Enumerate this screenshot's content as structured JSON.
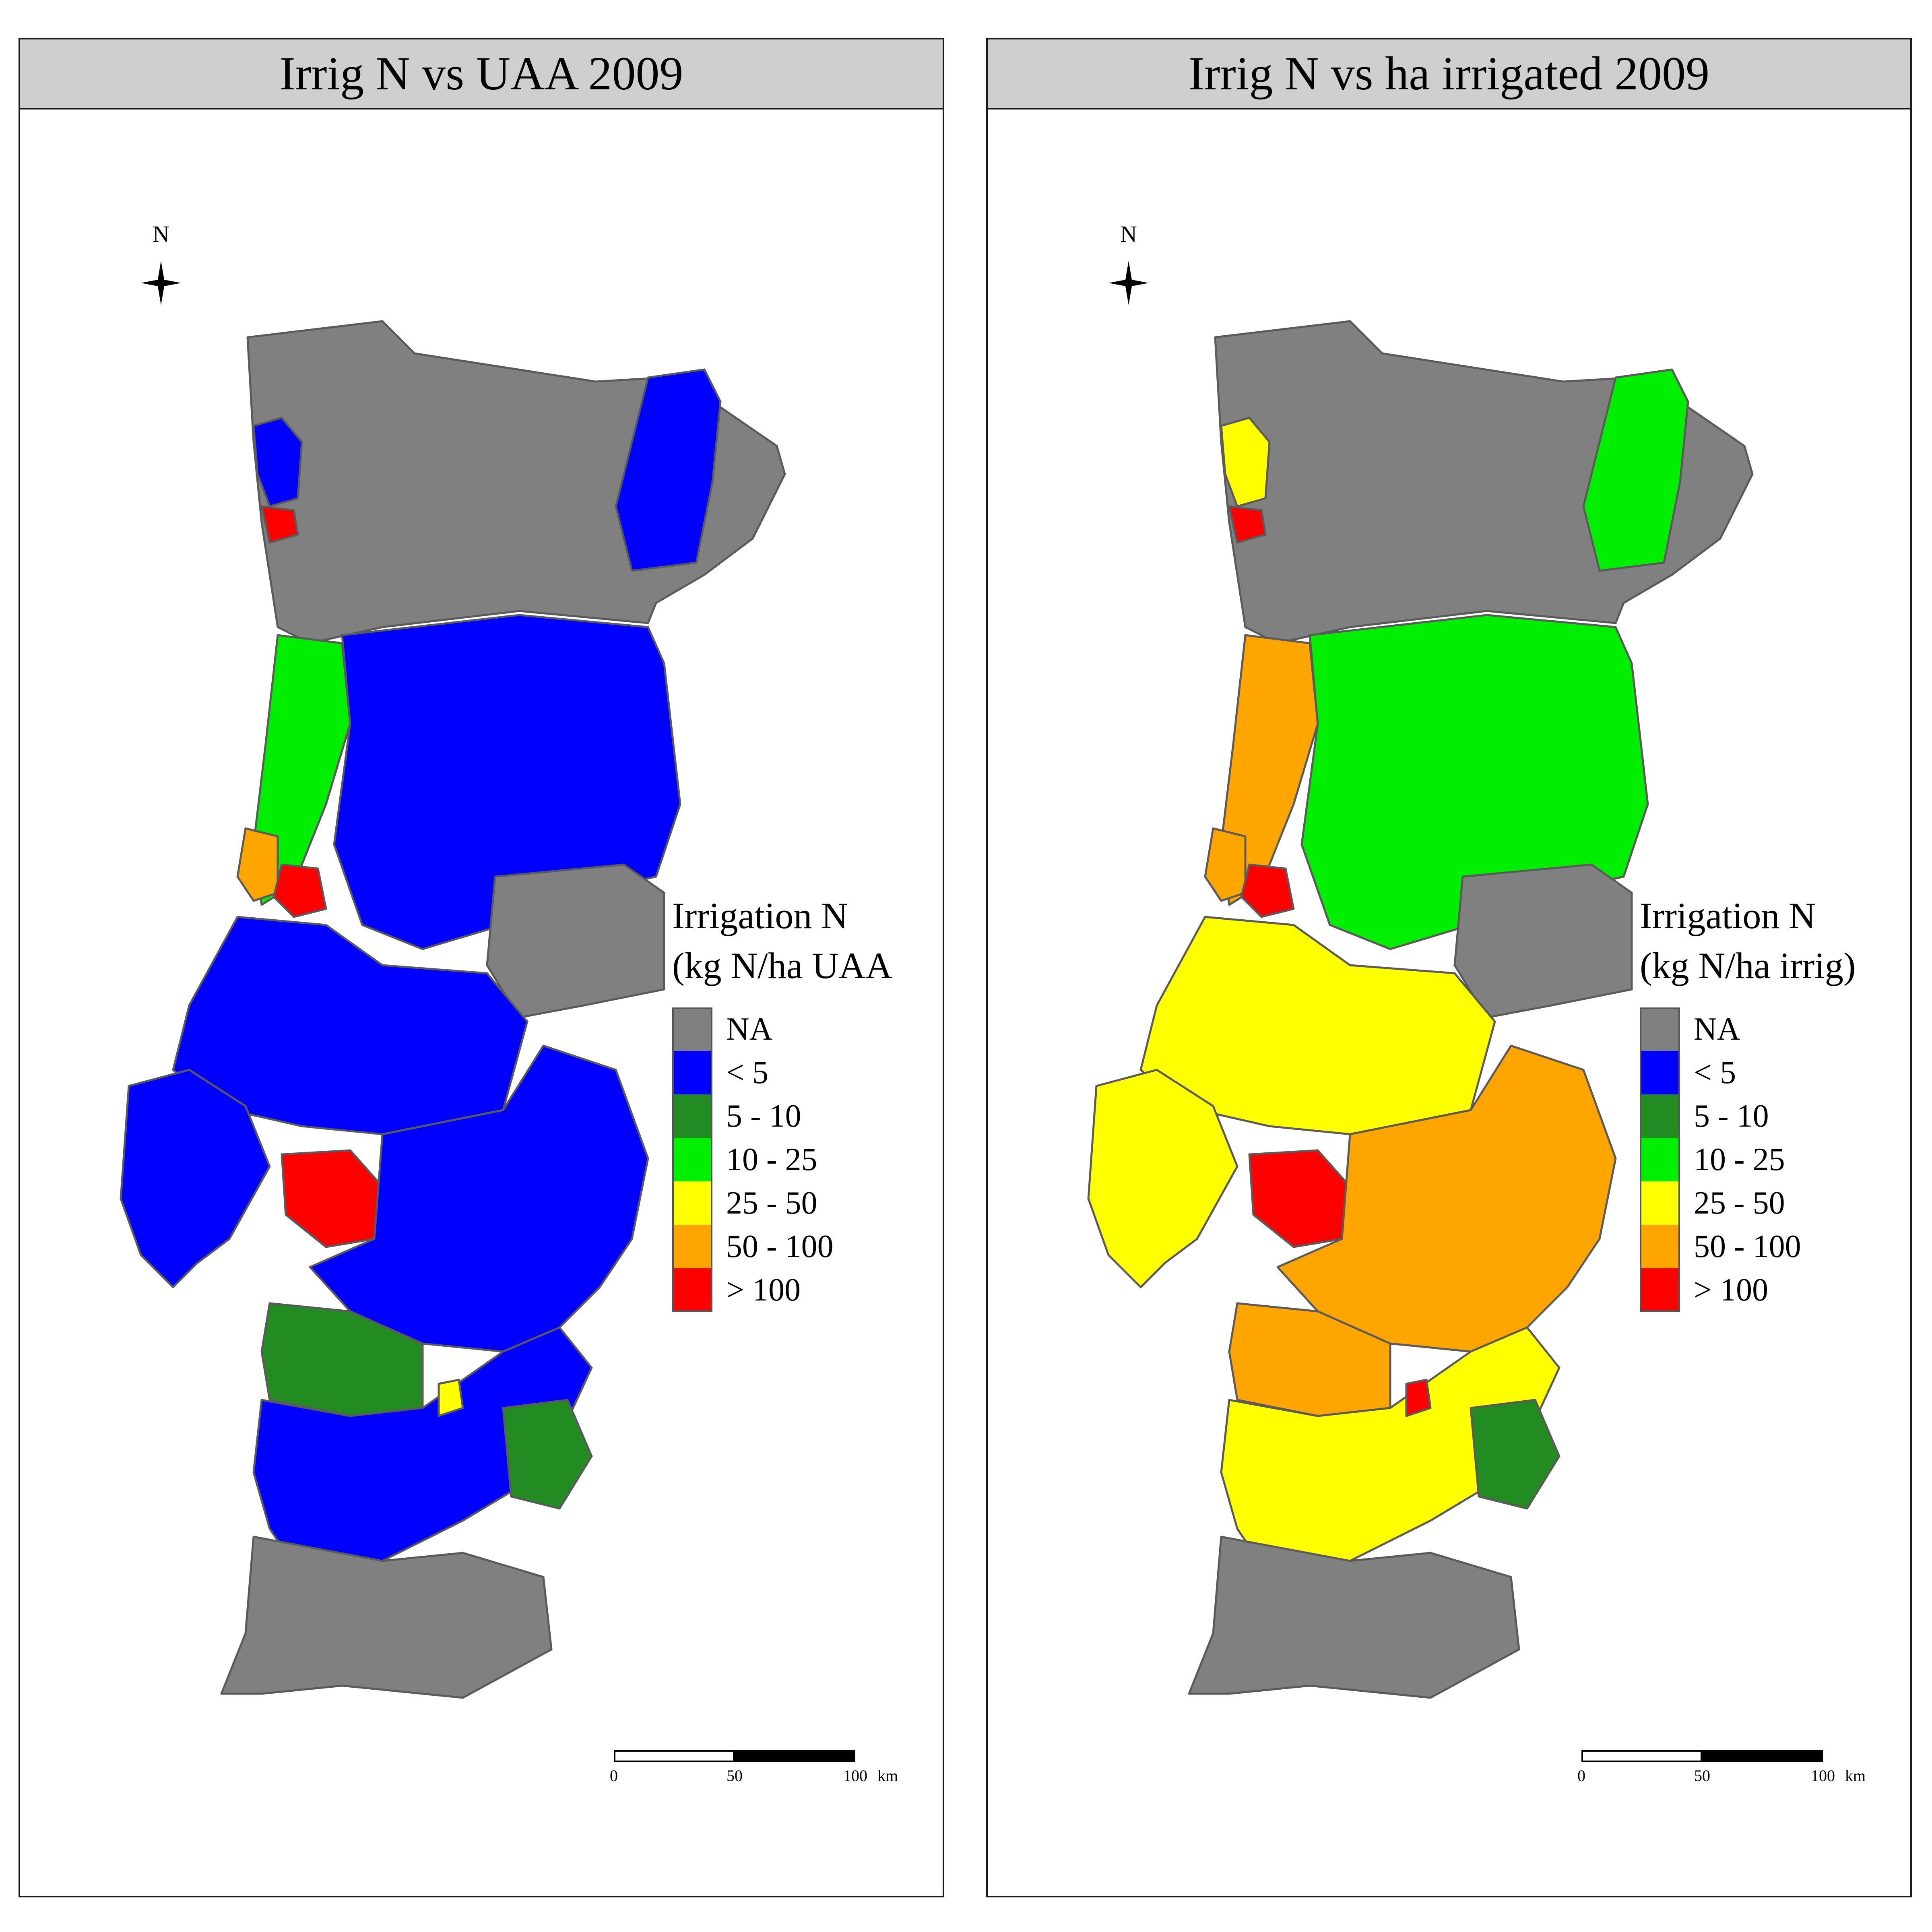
{
  "colors": {
    "na": "#808080",
    "lt5": "#0000ff",
    "5-10": "#228b22",
    "10-25": "#00ee00",
    "25-50": "#ffff00",
    "50-100": "#ffa500",
    "gt100": "#ff0000",
    "border": "#5a5a5a"
  },
  "north_label": "N",
  "scale": {
    "ticks": [
      "0",
      "50",
      "100"
    ],
    "unit": "km"
  },
  "legend_classes": [
    {
      "key": "na",
      "label": "NA"
    },
    {
      "key": "lt5",
      "label": "< 5"
    },
    {
      "key": "5-10",
      "label": "5 - 10"
    },
    {
      "key": "10-25",
      "label": "10 - 25"
    },
    {
      "key": "25-50",
      "label": "25 - 50"
    },
    {
      "key": "50-100",
      "label": "50 - 100"
    },
    {
      "key": "gt100",
      "label": "> 100"
    }
  ],
  "panels": [
    {
      "title": "Irrig N vs UAA 2009",
      "legend_title_1": "Irrigation N",
      "legend_title_2": "(kg N/ha UAA",
      "regions": {
        "north": "na",
        "northeast": "lt5",
        "minho": "lt5",
        "porto": "gt100",
        "coast": "10-25",
        "beira": "lt5",
        "leiria": "50-100",
        "coimbra": "gt100",
        "beira_east": "na",
        "tejo": "lt5",
        "lisbon": "gt100",
        "setubal": "lt5",
        "alentejo": "lt5",
        "alentejo_sw": "5-10",
        "baixo": "lt5",
        "algarve": "na",
        "guadiana": "5-10",
        "spot": "25-50"
      }
    },
    {
      "title": "Irrig N vs ha irrigated 2009",
      "legend_title_1": "Irrigation N",
      "legend_title_2": "(kg N/ha irrig)",
      "regions": {
        "north": "na",
        "northeast": "10-25",
        "minho": "25-50",
        "porto": "gt100",
        "coast": "50-100",
        "beira": "10-25",
        "leiria": "50-100",
        "coimbra": "gt100",
        "beira_east": "na",
        "tejo": "25-50",
        "lisbon": "gt100",
        "setubal": "25-50",
        "alentejo": "50-100",
        "alentejo_sw": "50-100",
        "baixo": "25-50",
        "algarve": "na",
        "guadiana": "5-10",
        "spot": "gt100"
      }
    }
  ]
}
